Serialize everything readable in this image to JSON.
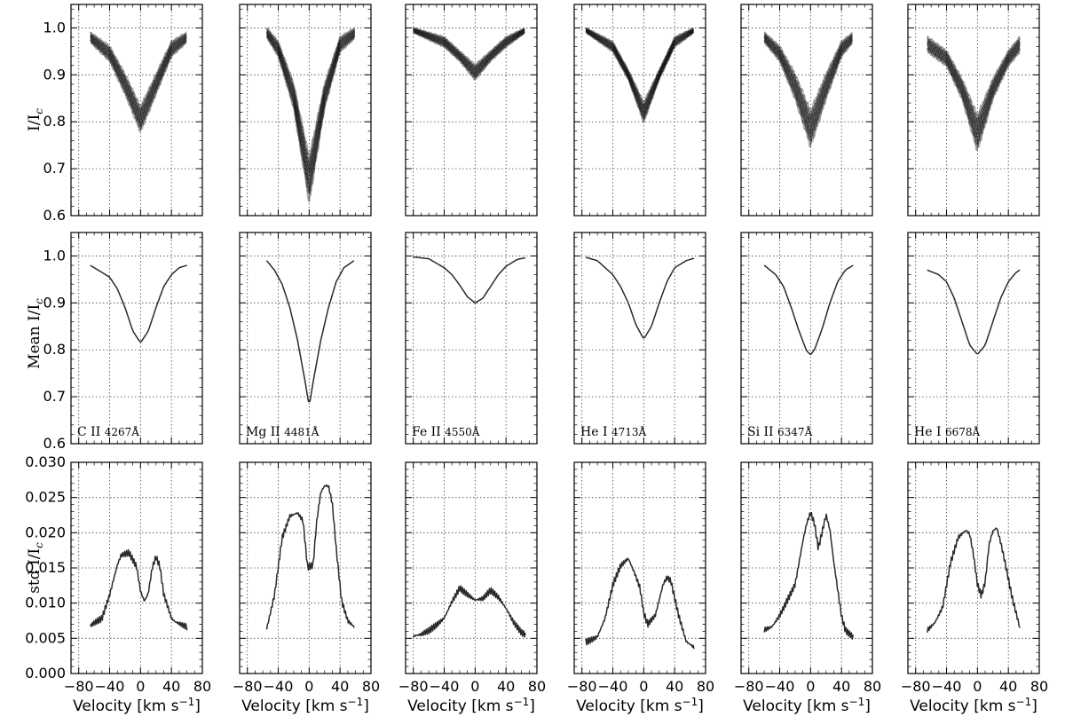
{
  "figure": {
    "row_labels": [
      "I/I_c",
      "Mean I/I_c",
      "std I/I_c"
    ],
    "xlabel": "Velocity [km s^-1]"
  },
  "chart_data": [
    {
      "type": "line",
      "row": "individual profiles",
      "ylabel": "I/I_c",
      "ylim": [
        0.6,
        1.05
      ],
      "yticks": [
        "0.6",
        "0.7",
        "0.8",
        "0.9",
        "1.0"
      ],
      "xlim": [
        -90,
        80
      ],
      "xticks": [
        "-80",
        "-40",
        "0",
        "40",
        "80"
      ],
      "grid": true,
      "series": [
        {
          "line": "C II 4267Å",
          "x": [
            -65,
            -40,
            -20,
            0,
            20,
            40,
            60
          ],
          "y_band": [
            [
              0.97,
              0.99
            ],
            [
              0.93,
              0.96
            ],
            [
              0.86,
              0.9
            ],
            [
              0.78,
              0.83
            ],
            [
              0.86,
              0.9
            ],
            [
              0.94,
              0.97
            ],
            [
              0.97,
              0.99
            ]
          ]
        },
        {
          "line": "Mg II 4481Å",
          "x": [
            -55,
            -40,
            -20,
            0,
            20,
            40,
            60
          ],
          "y_band": [
            [
              0.98,
              1.0
            ],
            [
              0.94,
              0.97
            ],
            [
              0.83,
              0.88
            ],
            [
              0.63,
              0.72
            ],
            [
              0.83,
              0.88
            ],
            [
              0.95,
              0.98
            ],
            [
              0.98,
              1.0
            ]
          ]
        },
        {
          "line": "Fe II 4550Å",
          "x": [
            -80,
            -40,
            -20,
            0,
            20,
            40,
            65
          ],
          "y_band": [
            [
              0.99,
              1.0
            ],
            [
              0.96,
              0.98
            ],
            [
              0.93,
              0.95
            ],
            [
              0.89,
              0.92
            ],
            [
              0.93,
              0.95
            ],
            [
              0.96,
              0.98
            ],
            [
              0.99,
              1.0
            ]
          ]
        },
        {
          "line": "He I 4713Å",
          "x": [
            -75,
            -40,
            -20,
            0,
            20,
            40,
            65
          ],
          "y_band": [
            [
              0.99,
              1.0
            ],
            [
              0.95,
              0.97
            ],
            [
              0.89,
              0.91
            ],
            [
              0.8,
              0.84
            ],
            [
              0.89,
              0.91
            ],
            [
              0.96,
              0.98
            ],
            [
              0.99,
              1.0
            ]
          ]
        },
        {
          "line": "Si II 6347Å",
          "x": [
            -60,
            -40,
            -20,
            0,
            20,
            40,
            55
          ],
          "y_band": [
            [
              0.97,
              0.99
            ],
            [
              0.93,
              0.96
            ],
            [
              0.85,
              0.9
            ],
            [
              0.75,
              0.82
            ],
            [
              0.85,
              0.9
            ],
            [
              0.94,
              0.97
            ],
            [
              0.97,
              0.99
            ]
          ]
        },
        {
          "line": "He I 6678Å",
          "x": [
            -65,
            -40,
            -20,
            0,
            20,
            40,
            55
          ],
          "y_band": [
            [
              0.95,
              0.98
            ],
            [
              0.92,
              0.95
            ],
            [
              0.85,
              0.89
            ],
            [
              0.74,
              0.81
            ],
            [
              0.85,
              0.89
            ],
            [
              0.92,
              0.95
            ],
            [
              0.95,
              0.98
            ]
          ]
        }
      ]
    },
    {
      "type": "line",
      "row": "mean profiles",
      "ylabel": "Mean I/I_c",
      "ylim": [
        0.6,
        1.05
      ],
      "yticks": [
        "0.6",
        "0.7",
        "0.8",
        "0.9",
        "1.0"
      ],
      "xlim": [
        -90,
        80
      ],
      "xticks": [
        "-80",
        "-40",
        "0",
        "40",
        "80"
      ],
      "grid": true,
      "series": [
        {
          "annotation": "C II 4267Å",
          "x": [
            -65,
            -50,
            -40,
            -30,
            -20,
            -10,
            0,
            10,
            20,
            30,
            40,
            50,
            60
          ],
          "y": [
            0.98,
            0.965,
            0.955,
            0.93,
            0.89,
            0.84,
            0.815,
            0.84,
            0.89,
            0.935,
            0.96,
            0.975,
            0.98
          ]
        },
        {
          "annotation": "Mg II 4481Å",
          "x": [
            -55,
            -45,
            -35,
            -25,
            -15,
            -5,
            0,
            5,
            15,
            25,
            35,
            45,
            58
          ],
          "y": [
            0.99,
            0.97,
            0.94,
            0.89,
            0.82,
            0.73,
            0.68,
            0.73,
            0.82,
            0.89,
            0.945,
            0.975,
            0.99
          ]
        },
        {
          "annotation": "Fe II 4550Å",
          "x": [
            -80,
            -60,
            -40,
            -30,
            -20,
            -10,
            0,
            10,
            20,
            30,
            40,
            55,
            65
          ],
          "y": [
            0.998,
            0.994,
            0.975,
            0.96,
            0.938,
            0.913,
            0.9,
            0.91,
            0.935,
            0.96,
            0.978,
            0.993,
            0.996
          ]
        },
        {
          "annotation": "He I 4713Å",
          "x": [
            -75,
            -60,
            -40,
            -30,
            -20,
            -10,
            0,
            10,
            20,
            30,
            40,
            55,
            65
          ],
          "y": [
            0.997,
            0.99,
            0.96,
            0.935,
            0.9,
            0.853,
            0.823,
            0.85,
            0.9,
            0.945,
            0.975,
            0.99,
            0.995
          ]
        },
        {
          "annotation": "Si II 6347Å",
          "x": [
            -60,
            -45,
            -35,
            -25,
            -15,
            -5,
            0,
            5,
            15,
            25,
            35,
            45,
            55
          ],
          "y": [
            0.98,
            0.96,
            0.935,
            0.89,
            0.84,
            0.797,
            0.79,
            0.8,
            0.845,
            0.9,
            0.945,
            0.97,
            0.98
          ]
        },
        {
          "annotation": "He I 6678Å",
          "x": [
            -65,
            -50,
            -40,
            -30,
            -20,
            -10,
            0,
            10,
            20,
            30,
            40,
            50,
            55
          ],
          "y": [
            0.97,
            0.96,
            0.945,
            0.91,
            0.86,
            0.81,
            0.79,
            0.81,
            0.86,
            0.91,
            0.945,
            0.965,
            0.97
          ]
        }
      ]
    },
    {
      "type": "line",
      "row": "standard deviation",
      "ylabel": "std I/I_c",
      "ylim": [
        0.0,
        0.03
      ],
      "yticks": [
        "0.000",
        "0.005",
        "0.010",
        "0.015",
        "0.020",
        "0.025",
        "0.030"
      ],
      "xlim": [
        -90,
        80
      ],
      "xticks": [
        "-80",
        "-40",
        "0",
        "40",
        "80"
      ],
      "grid": true,
      "series": [
        {
          "line": "C II 4267Å",
          "x": [
            -65,
            -50,
            -40,
            -30,
            -25,
            -15,
            -5,
            0,
            5,
            10,
            15,
            20,
            25,
            30,
            40,
            45,
            50,
            60
          ],
          "y": [
            0.0065,
            0.0075,
            0.011,
            0.0155,
            0.017,
            0.0175,
            0.0155,
            0.012,
            0.0105,
            0.0115,
            0.015,
            0.0165,
            0.015,
            0.011,
            0.0075,
            0.007,
            0.0068,
            0.0065
          ]
        },
        {
          "line": "Mg II 4481Å",
          "x": [
            -55,
            -45,
            -35,
            -25,
            -15,
            -8,
            -2,
            5,
            10,
            15,
            20,
            25,
            30,
            35,
            42,
            50,
            58
          ],
          "y": [
            0.0065,
            0.011,
            0.019,
            0.022,
            0.0225,
            0.0215,
            0.015,
            0.0155,
            0.022,
            0.026,
            0.027,
            0.027,
            0.0245,
            0.018,
            0.0105,
            0.0075,
            0.0065
          ]
        },
        {
          "line": "Fe II 4550Å",
          "x": [
            -80,
            -70,
            -60,
            -50,
            -40,
            -30,
            -20,
            -10,
            0,
            10,
            20,
            30,
            40,
            50,
            60,
            65
          ],
          "y": [
            0.005,
            0.0052,
            0.0058,
            0.0068,
            0.008,
            0.0105,
            0.0125,
            0.0115,
            0.0105,
            0.0105,
            0.0115,
            0.0105,
            0.009,
            0.0072,
            0.006,
            0.0058
          ]
        },
        {
          "line": "He I 4713Å",
          "x": [
            -75,
            -60,
            -50,
            -40,
            -30,
            -20,
            -12,
            -5,
            0,
            5,
            15,
            25,
            30,
            35,
            45,
            55,
            65
          ],
          "y": [
            0.0048,
            0.0055,
            0.008,
            0.0125,
            0.015,
            0.016,
            0.014,
            0.012,
            0.0085,
            0.007,
            0.0085,
            0.013,
            0.014,
            0.0135,
            0.0085,
            0.0045,
            0.0035
          ]
        },
        {
          "line": "Si II 6347Å",
          "x": [
            -60,
            -50,
            -40,
            -30,
            -20,
            -10,
            -5,
            0,
            5,
            10,
            15,
            20,
            25,
            30,
            40,
            45,
            55
          ],
          "y": [
            0.0065,
            0.007,
            0.0085,
            0.0105,
            0.0125,
            0.0185,
            0.021,
            0.0225,
            0.021,
            0.0175,
            0.02,
            0.0225,
            0.0205,
            0.016,
            0.0085,
            0.0065,
            0.0055
          ]
        },
        {
          "line": "He I 6678Å",
          "x": [
            -65,
            -55,
            -45,
            -35,
            -25,
            -15,
            -10,
            -5,
            0,
            5,
            10,
            15,
            20,
            25,
            30,
            35,
            45,
            55
          ],
          "y": [
            0.0065,
            0.0075,
            0.0095,
            0.0155,
            0.019,
            0.02,
            0.0195,
            0.0165,
            0.0125,
            0.011,
            0.013,
            0.0185,
            0.0205,
            0.021,
            0.019,
            0.0165,
            0.011,
            0.0065
          ]
        }
      ]
    }
  ]
}
